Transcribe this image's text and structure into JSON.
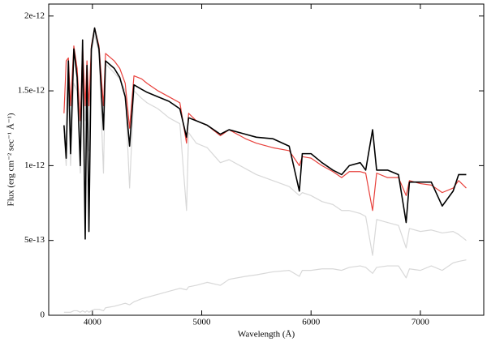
{
  "chart_data": {
    "type": "line",
    "x_label": "Wavelength (Å)",
    "y_label": "Flux (erg cm⁻² sec⁻¹ Å⁻¹)",
    "xlim": [
      3600,
      7580
    ],
    "xticks": [
      4000,
      5000,
      6000,
      7000
    ],
    "ylim": [
      0,
      2.08e-12
    ],
    "yticks": [
      0,
      5e-13,
      1e-12,
      1.5e-12,
      2e-12
    ],
    "x": [
      3740,
      3760,
      3780,
      3800,
      3830,
      3860,
      3889,
      3910,
      3934,
      3950,
      3968,
      3990,
      4020,
      4060,
      4101,
      4120,
      4200,
      4250,
      4300,
      4340,
      4380,
      4450,
      4500,
      4600,
      4700,
      4800,
      4861,
      4880,
      4950,
      5050,
      5170,
      5250,
      5400,
      5500,
      5650,
      5800,
      5893,
      5920,
      6000,
      6100,
      6200,
      6280,
      6350,
      6450,
      6500,
      6563,
      6600,
      6700,
      6800,
      6870,
      6900,
      7000,
      7100,
      7200,
      7300,
      7350,
      7420
    ],
    "series": [
      {
        "color": "#d8d8d8",
        "values": [
          2e-14,
          2e-14,
          2e-14,
          2e-14,
          3e-14,
          3e-14,
          2e-14,
          3e-14,
          2e-14,
          3e-14,
          2e-14,
          3e-14,
          4e-14,
          4e-14,
          3e-14,
          5e-14,
          6e-14,
          7e-14,
          8e-14,
          7e-14,
          9e-14,
          1.1e-13,
          1.2e-13,
          1.4e-13,
          1.6e-13,
          1.8e-13,
          1.7e-13,
          1.9e-13,
          2e-13,
          2.2e-13,
          2e-13,
          2.4e-13,
          2.6e-13,
          2.7e-13,
          2.9e-13,
          3e-13,
          2.6e-13,
          3e-13,
          3e-13,
          3.1e-13,
          3.1e-13,
          3e-13,
          3.2e-13,
          3.3e-13,
          3.2e-13,
          2.8e-13,
          3.2e-13,
          3.3e-13,
          3.3e-13,
          2.5e-13,
          3.1e-13,
          3e-13,
          3.3e-13,
          3e-13,
          3.5e-13,
          3.6e-13,
          3.7e-13
        ]
      },
      {
        "color": "#d8d8d8",
        "values": [
          1.2e-12,
          1e-12,
          1.5e-12,
          1e-12,
          1.55e-12,
          1.5e-12,
          9.5e-13,
          1.65e-12,
          1.3e-12,
          1.6e-12,
          1.1e-12,
          1.75e-12,
          1.88e-12,
          1.75e-12,
          9.5e-13,
          1.68e-12,
          1.62e-12,
          1.58e-12,
          1.5e-12,
          8.5e-13,
          1.5e-12,
          1.45e-12,
          1.42e-12,
          1.38e-12,
          1.32e-12,
          1.28e-12,
          7e-13,
          1.22e-12,
          1.15e-12,
          1.12e-12,
          1.02e-12,
          1.04e-12,
          9.8e-13,
          9.4e-13,
          9e-13,
          8.6e-13,
          8e-13,
          8.2e-13,
          8e-13,
          7.6e-13,
          7.4e-13,
          7e-13,
          7e-13,
          6.8e-13,
          6.6e-13,
          4e-13,
          6.4e-13,
          6.2e-13,
          6e-13,
          4.5e-13,
          5.8e-13,
          5.6e-13,
          5.7e-13,
          5.5e-13,
          5.6e-13,
          5.4e-13,
          5e-13
        ]
      },
      {
        "color": "#e8413c",
        "values": [
          1.35e-12,
          1.7e-12,
          1.72e-12,
          1.4e-12,
          1.8e-12,
          1.65e-12,
          1.3e-12,
          1.8e-12,
          1.4e-12,
          1.7e-12,
          1.4e-12,
          1.8e-12,
          1.92e-12,
          1.8e-12,
          1.4e-12,
          1.75e-12,
          1.7e-12,
          1.65e-12,
          1.55e-12,
          1.25e-12,
          1.6e-12,
          1.58e-12,
          1.55e-12,
          1.5e-12,
          1.46e-12,
          1.42e-12,
          1.15e-12,
          1.35e-12,
          1.3e-12,
          1.27e-12,
          1.2e-12,
          1.24e-12,
          1.18e-12,
          1.15e-12,
          1.12e-12,
          1.1e-12,
          1e-12,
          1.06e-12,
          1.05e-12,
          1e-12,
          9.6e-13,
          9.2e-13,
          9.6e-13,
          9.6e-13,
          9.5e-13,
          7e-13,
          9.5e-13,
          9.2e-13,
          9.2e-13,
          8e-13,
          9e-13,
          8.8e-13,
          8.7e-13,
          8.2e-13,
          8.5e-13,
          9e-13,
          8.5e-13
        ]
      },
      {
        "color": "#000000",
        "values": [
          1.27e-12,
          1.05e-12,
          1.7e-12,
          1.08e-12,
          1.78e-12,
          1.59e-12,
          1e-12,
          1.84e-12,
          5.1e-13,
          1.67e-12,
          5.6e-13,
          1.78e-12,
          1.92e-12,
          1.78e-12,
          1.24e-12,
          1.7e-12,
          1.65e-12,
          1.59e-12,
          1.46e-12,
          1.13e-12,
          1.54e-12,
          1.51e-12,
          1.49e-12,
          1.46e-12,
          1.43e-12,
          1.38e-12,
          1.19e-12,
          1.32e-12,
          1.3e-12,
          1.27e-12,
          1.21e-12,
          1.24e-12,
          1.21e-12,
          1.19e-12,
          1.18e-12,
          1.13e-12,
          8.3e-13,
          1.08e-12,
          1.08e-12,
          1.02e-12,
          9.7e-13,
          9.4e-13,
          1e-12,
          1.02e-12,
          9.7e-13,
          1.24e-12,
          9.7e-13,
          9.7e-13,
          9.4e-13,
          6.2e-13,
          8.9e-13,
          8.9e-13,
          8.9e-13,
          7.3e-13,
          8.3e-13,
          9.4e-13,
          9.4e-13
        ]
      }
    ]
  }
}
